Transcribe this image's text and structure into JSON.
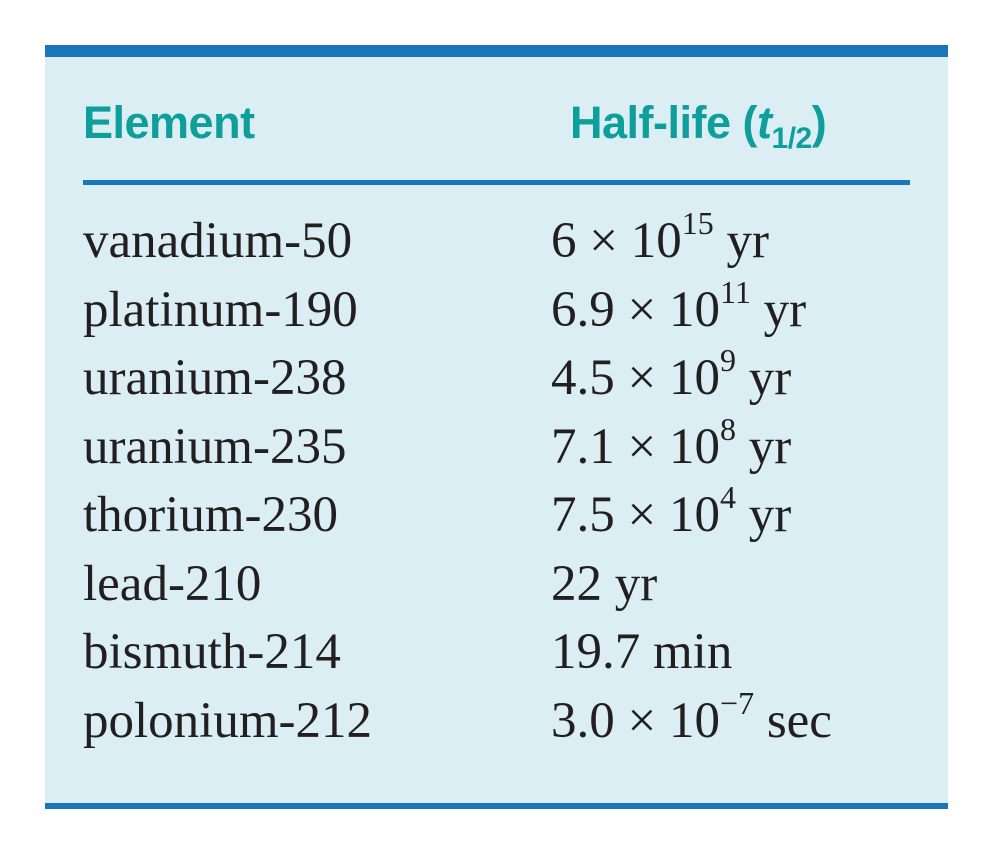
{
  "header": {
    "element_label": "Element",
    "halflife_label": "Half-life (",
    "halflife_var": "t",
    "halflife_sub": "1/2",
    "halflife_close": ")"
  },
  "rows": [
    {
      "element": "vanadium-50",
      "mantissa": "6 × 10",
      "exponent": "15",
      "unit": " yr"
    },
    {
      "element": "platinum-190",
      "mantissa": "6.9 × 10",
      "exponent": "11",
      "unit": " yr"
    },
    {
      "element": "uranium-238",
      "mantissa": "4.5 × 10",
      "exponent": "9",
      "unit": " yr"
    },
    {
      "element": "uranium-235",
      "mantissa": "7.1 × 10",
      "exponent": "8",
      "unit": " yr"
    },
    {
      "element": "thorium-230",
      "mantissa": "7.5 × 10",
      "exponent": "4",
      "unit": " yr"
    },
    {
      "element": "lead-210",
      "mantissa": "22 yr",
      "exponent": "",
      "unit": ""
    },
    {
      "element": "bismuth-214",
      "mantissa": "19.7 min",
      "exponent": "",
      "unit": ""
    },
    {
      "element": "polonium-212",
      "mantissa": "3.0 × 10",
      "exponent": "−7",
      "unit": " sec"
    }
  ],
  "colors": {
    "rule": "#1a76bb",
    "header_text": "#0e9e9b",
    "panel_bg": "#daeef3",
    "body_text": "#231f20"
  }
}
